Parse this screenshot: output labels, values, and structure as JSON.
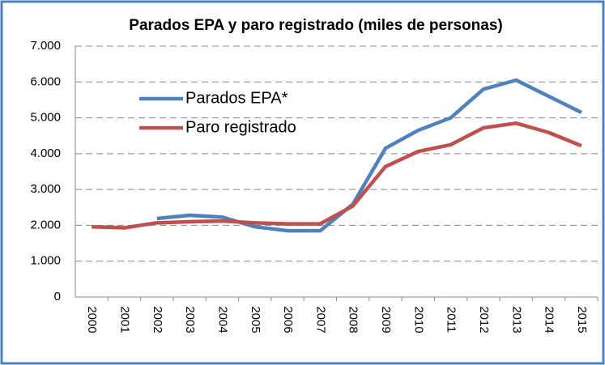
{
  "chart_data": {
    "type": "line",
    "title": "Parados EPA y paro registrado (miles de personas)",
    "categories": [
      "2000",
      "2001",
      "2002",
      "2003",
      "2004",
      "2005",
      "2006",
      "2007",
      "2008",
      "2009",
      "2010",
      "2011",
      "2012",
      "2013",
      "2014",
      "2015"
    ],
    "series": [
      {
        "name": "Parados EPA*",
        "color": "#4f81bd",
        "values": [
          null,
          null,
          2190,
          2280,
          2230,
          1960,
          1850,
          1850,
          2590,
          4150,
          4650,
          5000,
          5800,
          6050,
          5600,
          5150
        ]
      },
      {
        "name": "Paro registrado",
        "color": "#c0504d",
        "values": [
          1960,
          1930,
          2070,
          2100,
          2120,
          2070,
          2040,
          2040,
          2540,
          3640,
          4060,
          4250,
          4720,
          4850,
          4590,
          4220
        ]
      }
    ],
    "ylim": [
      0,
      7000
    ],
    "yticks": [
      0,
      {
        "value": 1000,
        "label": "1.000"
      },
      {
        "value": 2000,
        "label": "2.000"
      },
      {
        "value": 3000,
        "label": "3.000"
      },
      {
        "value": 4000,
        "label": "4.000"
      },
      {
        "value": 5000,
        "label": "5.000"
      },
      {
        "value": 6000,
        "label": "6.000"
      },
      {
        "value": 7000,
        "label": "7.000"
      }
    ],
    "grid": true
  }
}
